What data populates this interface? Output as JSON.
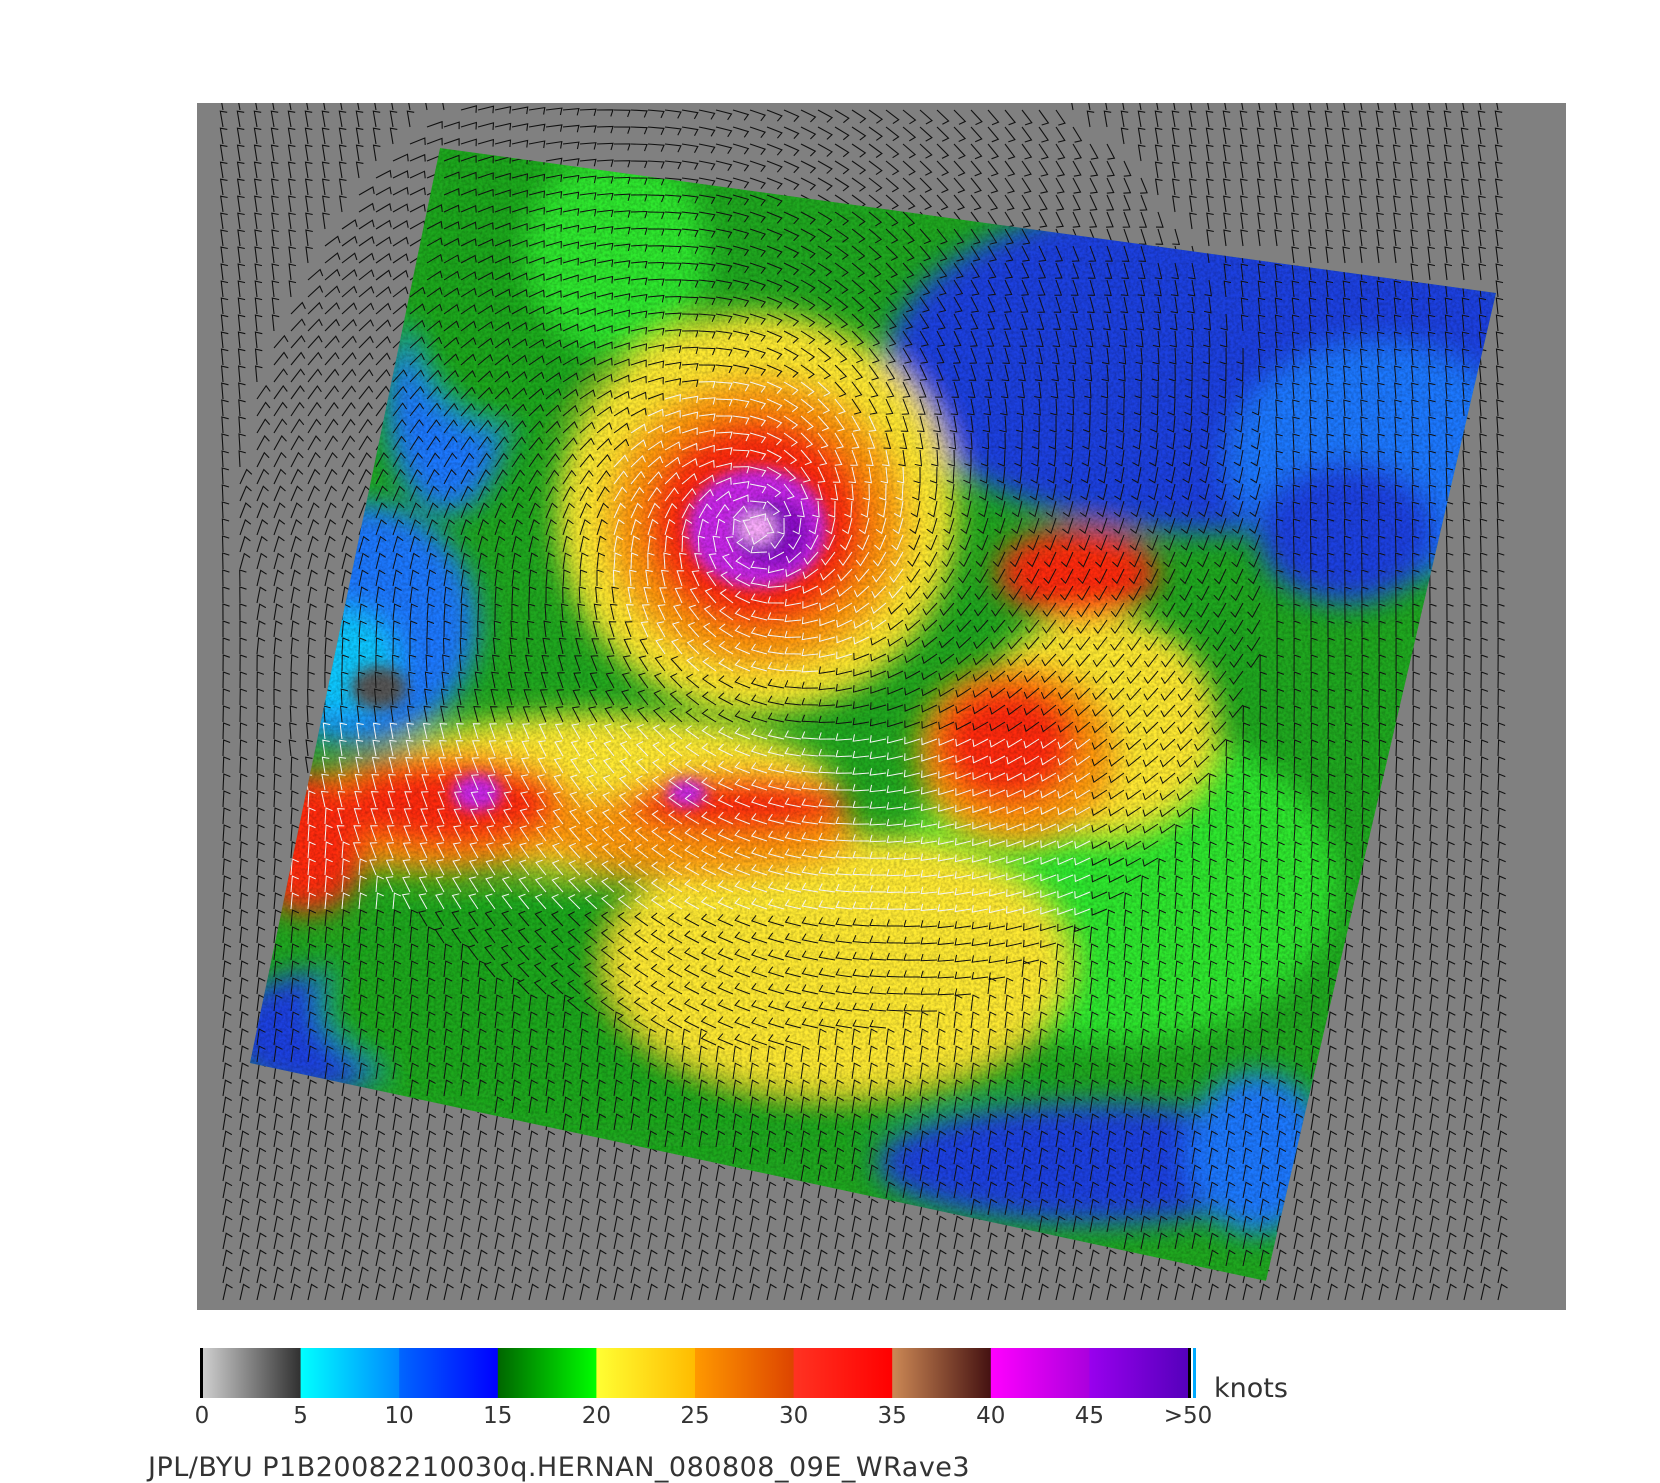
{
  "colorbar": {
    "units": "knots",
    "ticks": [
      "0",
      "5",
      "10",
      "15",
      "20",
      "25",
      "30",
      "35",
      "40",
      "45",
      ">50"
    ],
    "segments": [
      {
        "from": "#d0d0d0",
        "to": "#303030"
      },
      {
        "from": "#00ffff",
        "to": "#0088ff"
      },
      {
        "from": "#0066ff",
        "to": "#0000ff"
      },
      {
        "from": "#006600",
        "to": "#00ff00"
      },
      {
        "from": "#ffff33",
        "to": "#ffbb00"
      },
      {
        "from": "#ff9900",
        "to": "#dd4400"
      },
      {
        "from": "#ff3322",
        "to": "#ff0000"
      },
      {
        "from": "#cc8855",
        "to": "#441111"
      },
      {
        "from": "#ff00ff",
        "to": "#aa00dd"
      },
      {
        "from": "#9900ee",
        "to": "#5500bb"
      }
    ]
  },
  "caption": "JPL/BYU  P1B20082210030q.HERNAN_080808_09E_WRave3",
  "storm": {
    "name": "HERNAN",
    "date": "080808",
    "id": "09E"
  },
  "map": {
    "background": "#808080",
    "swath_colors": {
      "deep_blue": "#1a3fe0",
      "blue": "#1e78ff",
      "cyan": "#10c8ff",
      "green": "#1fa81f",
      "bright_green": "#2ee82e",
      "yellow": "#ffea30",
      "orange": "#ff9a10",
      "red": "#ff2a10",
      "magenta": "#c828e8",
      "purple": "#8a10c8"
    }
  }
}
